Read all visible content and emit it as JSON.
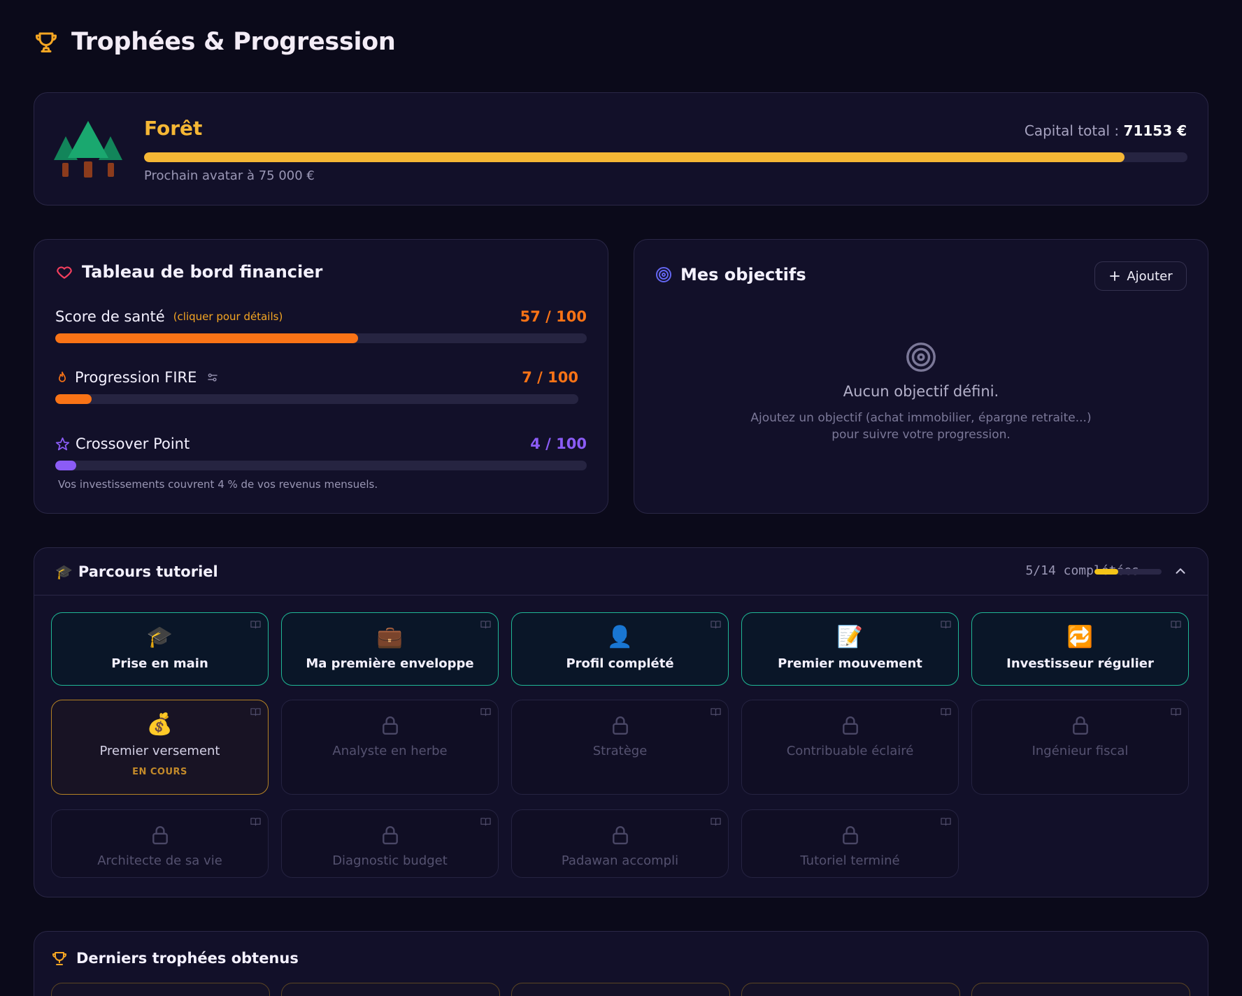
{
  "header": {
    "title": "Trophées & Progression",
    "icon": "trophy-icon"
  },
  "avatar": {
    "level_name": "Forêt",
    "capital_label": "Capital total :",
    "capital_value": "71153 €",
    "progress": 0.94,
    "next_label": "Prochain avatar à 75 000 €"
  },
  "dashboard": {
    "title": "Tableau de bord financier",
    "health": {
      "label": "Score de santé",
      "hint": "(cliquer pour détails)",
      "value": "57 / 100",
      "score": 57,
      "color": "#f97316"
    },
    "fire": {
      "label": "Progression FIRE",
      "value": "7 / 100",
      "score": 7,
      "color": "#f97316"
    },
    "crossover": {
      "label": "Crossover Point",
      "value": "4 / 100",
      "score": 4,
      "color": "#8b5cf6",
      "note": "Vos investissements couvrent 4 % de vos revenus mensuels."
    }
  },
  "goals": {
    "title": "Mes objectifs",
    "add_label": "Ajouter",
    "empty_title": "Aucun objectif défini.",
    "empty_desc_line1": "Ajoutez un objectif (achat immobilier, épargne retraite...)",
    "empty_desc_line2": "pour suivre votre progression."
  },
  "tutorial": {
    "title": "Parcours tutoriel",
    "count": "5/14 complétées",
    "completed": 5,
    "total": 14,
    "items": [
      {
        "label": "Prise en main",
        "status": "done",
        "emoji": "🎓"
      },
      {
        "label": "Ma première enveloppe",
        "status": "done",
        "emoji": "💼"
      },
      {
        "label": "Profil complété",
        "status": "done",
        "emoji": "👤"
      },
      {
        "label": "Premier mouvement",
        "status": "done",
        "emoji": "📝"
      },
      {
        "label": "Investisseur régulier",
        "status": "done",
        "emoji": "🔁"
      },
      {
        "label": "Premier versement",
        "status": "progress",
        "emoji": "💰",
        "state": "EN COURS"
      },
      {
        "label": "Analyste en herbe",
        "status": "locked"
      },
      {
        "label": "Stratège",
        "status": "locked"
      },
      {
        "label": "Contribuable éclairé",
        "status": "locked"
      },
      {
        "label": "Ingénieur fiscal",
        "status": "locked"
      },
      {
        "label": "Architecte de sa vie",
        "status": "locked"
      },
      {
        "label": "Diagnostic budget",
        "status": "locked"
      },
      {
        "label": "Padawan accompli",
        "status": "locked"
      },
      {
        "label": "Tutoriel terminé",
        "status": "locked"
      }
    ]
  },
  "trophies": {
    "title": "Derniers trophées obtenus"
  }
}
